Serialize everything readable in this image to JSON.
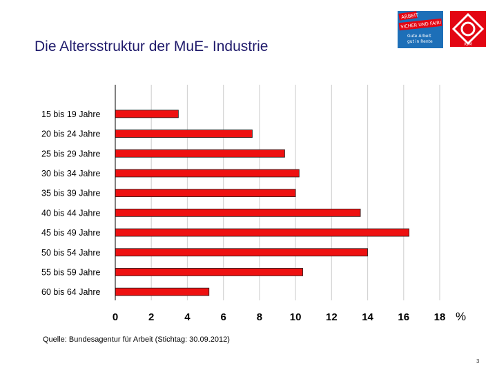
{
  "header": {
    "title": "Die Altersstruktur der MuE- Industrie",
    "campaign_lines": [
      "ARBEIT",
      "SICHER UND FAIR!",
      "Gute Arbeit",
      "gut in Rente"
    ],
    "igm_logo_text": "IGM"
  },
  "chart_data": {
    "type": "bar",
    "orientation": "horizontal",
    "title": "",
    "categories": [
      "15 bis 19 Jahre",
      "20 bis 24 Jahre",
      "25 bis 29 Jahre",
      "30 bis 34 Jahre",
      "35 bis 39 Jahre",
      "40 bis 44 Jahre",
      "45 bis 49 Jahre",
      "50 bis 54 Jahre",
      "55 bis 59 Jahre",
      "60 bis 64 Jahre"
    ],
    "values": [
      3.5,
      7.6,
      9.4,
      10.2,
      10.0,
      13.6,
      16.3,
      14.0,
      10.4,
      5.2
    ],
    "xlabel": "%",
    "xlim": [
      0,
      18
    ],
    "xticks": [
      0,
      2,
      4,
      6,
      8,
      10,
      12,
      14,
      16,
      18
    ],
    "grid": true,
    "legend": "none",
    "bar_color": "#ee1111"
  },
  "footer": {
    "source": "Quelle: Bundesagentur für Arbeit (Stichtag: 30.09.2012)",
    "page_number": "3"
  }
}
